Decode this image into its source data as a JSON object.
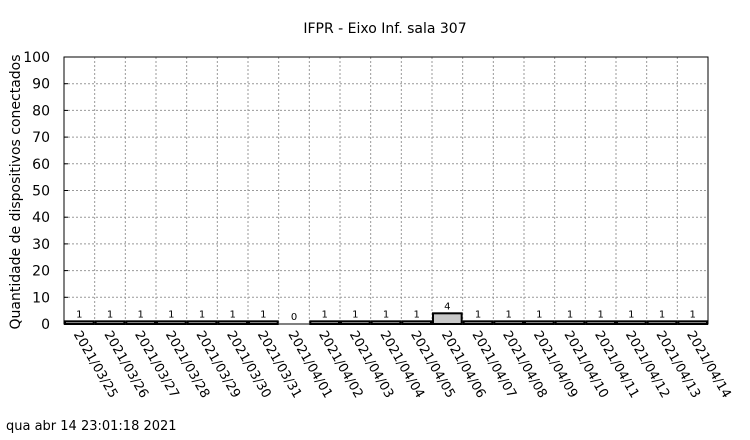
{
  "chart_data": {
    "type": "bar",
    "title": "IFPR - Eixo Inf. sala 307",
    "xlabel": "",
    "ylabel": "Quantidade de dispositivos conectados",
    "ylim": [
      0,
      100
    ],
    "yticks": [
      0,
      10,
      20,
      30,
      40,
      50,
      60,
      70,
      80,
      90,
      100
    ],
    "grid": true,
    "bar_fill": "#c8c8c8",
    "categories": [
      "2021/03/25",
      "2021/03/26",
      "2021/03/27",
      "2021/03/28",
      "2021/03/29",
      "2021/03/30",
      "2021/03/31",
      "2021/04/01",
      "2021/04/02",
      "2021/04/03",
      "2021/04/04",
      "2021/04/05",
      "2021/04/06",
      "2021/04/07",
      "2021/04/08",
      "2021/04/09",
      "2021/04/10",
      "2021/04/11",
      "2021/04/12",
      "2021/04/13",
      "2021/04/14"
    ],
    "values": [
      1,
      1,
      1,
      1,
      1,
      1,
      1,
      0,
      1,
      1,
      1,
      1,
      4,
      1,
      1,
      1,
      1,
      1,
      1,
      1,
      1
    ]
  },
  "footer": {
    "timestamp": "qua abr 14 23:01:18 2021"
  }
}
